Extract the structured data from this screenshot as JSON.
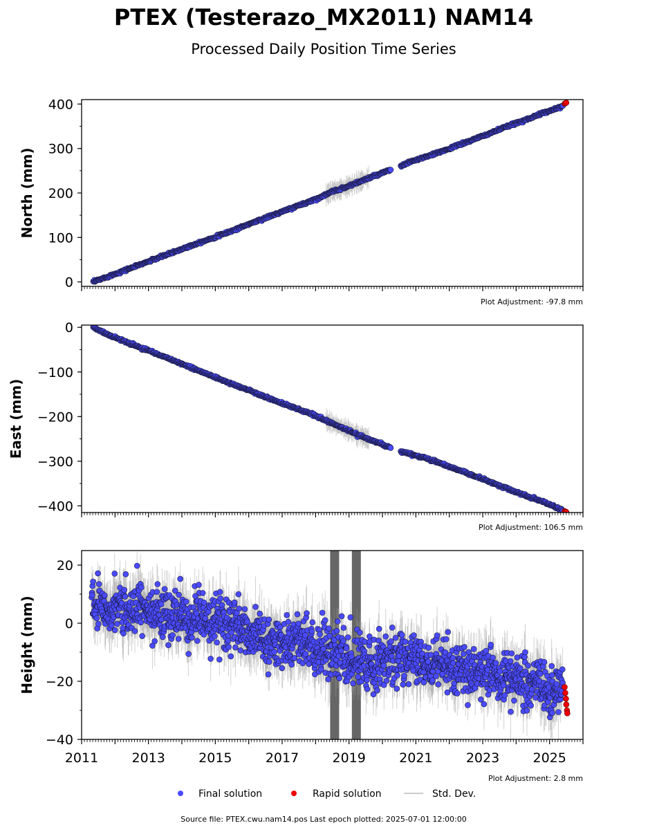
{
  "header": {
    "title": "PTEX (Testerazo_MX2011) NAM14",
    "subtitle": "Processed Daily Position Time Series"
  },
  "legend": {
    "final_label": "Final solution",
    "rapid_label": "Rapid solution",
    "std_label": "Std. Dev."
  },
  "footer": {
    "source": "Source file: PTEX.cwu.nam14.pos  Last epoch plotted: 2025-07-01 12:00:00"
  },
  "colors": {
    "final": "#4a4aff",
    "final_edge": "#1a1a3a",
    "rapid": "#ee0000",
    "std_dev": "#9a9a9a",
    "gap_bars": "#666666"
  },
  "chart_data": [
    {
      "type": "scatter",
      "ylabel": "North (mm)",
      "adjustment": "Plot Adjustment: -97.8 mm",
      "xlim": [
        2011.0,
        2026.0
      ],
      "ylim": [
        -10,
        410
      ],
      "yticks": [
        0,
        100,
        200,
        300,
        400
      ],
      "ytick_labels": [
        "0",
        "100",
        "200",
        "300",
        "400"
      ],
      "show_xtick_labels": false,
      "series": [
        {
          "name": "Final solution",
          "x": [
            2011.35,
            2011.6,
            2012.0,
            2012.5,
            2013.0,
            2013.5,
            2014.0,
            2014.5,
            2015.0,
            2015.5,
            2016.0,
            2016.5,
            2017.0,
            2017.5,
            2018.0,
            2018.5,
            2019.0,
            2019.5,
            2020.0,
            2020.5,
            2020.9,
            2021.5,
            2022.0,
            2022.5,
            2023.0,
            2023.5,
            2024.0,
            2024.5,
            2025.0,
            2025.4
          ],
          "y": [
            0,
            7,
            18,
            32,
            46,
            60,
            74,
            88,
            101,
            115,
            130,
            144,
            158,
            172,
            186,
            203,
            216,
            231,
            245,
            259,
            272,
            286,
            300,
            314,
            328,
            343,
            357,
            371,
            385,
            396
          ]
        },
        {
          "name": "Rapid solution",
          "x": [
            2025.45,
            2025.48,
            2025.5
          ],
          "y": [
            401,
            402,
            403
          ]
        }
      ]
    },
    {
      "type": "scatter",
      "ylabel": "East (mm)",
      "adjustment": "Plot Adjustment: 106.5 mm",
      "xlim": [
        2011.0,
        2026.0
      ],
      "ylim": [
        -415,
        5
      ],
      "yticks": [
        0,
        -100,
        -200,
        -300,
        -400
      ],
      "ytick_labels": [
        "0",
        "−100",
        "−200",
        "−300",
        "−400"
      ],
      "show_xtick_labels": false,
      "series": [
        {
          "name": "Final solution",
          "x": [
            2011.35,
            2011.6,
            2012.0,
            2012.5,
            2013.0,
            2013.5,
            2014.0,
            2014.5,
            2015.0,
            2015.5,
            2016.0,
            2016.5,
            2017.0,
            2017.5,
            2018.0,
            2018.5,
            2019.0,
            2019.5,
            2020.0,
            2020.5,
            2020.9,
            2021.5,
            2022.0,
            2022.5,
            2023.0,
            2023.5,
            2024.0,
            2024.5,
            2025.0,
            2025.4
          ],
          "y": [
            0,
            -10,
            -22,
            -38,
            -52,
            -67,
            -82,
            -97,
            -112,
            -127,
            -141,
            -156,
            -170,
            -184,
            -198,
            -215,
            -232,
            -248,
            -262,
            -277,
            -285,
            -298,
            -312,
            -326,
            -340,
            -355,
            -369,
            -383,
            -397,
            -410
          ]
        },
        {
          "name": "Rapid solution",
          "x": [
            2025.45,
            2025.48,
            2025.5
          ],
          "y": [
            -412,
            -413,
            -414
          ]
        }
      ]
    },
    {
      "type": "scatter",
      "ylabel": "Height (mm)",
      "adjustment": "Plot Adjustment: 2.8 mm",
      "xlim": [
        2011.0,
        2026.0
      ],
      "ylim": [
        -40,
        25
      ],
      "yticks": [
        20,
        0,
        -20,
        -40
      ],
      "ytick_labels": [
        "20",
        "0",
        "−20",
        "−40"
      ],
      "show_xtick_labels": true,
      "xticks": [
        2011,
        2013,
        2015,
        2017,
        2019,
        2021,
        2023,
        2025
      ],
      "xtick_labels": [
        "2011",
        "2013",
        "2015",
        "2017",
        "2019",
        "2021",
        "2023",
        "2025"
      ],
      "series": [
        {
          "name": "Final solution",
          "x": [
            2011.3,
            2011.5,
            2011.8,
            2012.1,
            2012.4,
            2012.7,
            2013.0,
            2013.3,
            2013.6,
            2013.9,
            2014.2,
            2014.5,
            2014.8,
            2015.1,
            2015.4,
            2015.7,
            2016.0,
            2016.3,
            2016.6,
            2016.9,
            2017.2,
            2017.5,
            2017.8,
            2018.1,
            2018.4,
            2018.7,
            2019.0,
            2019.3,
            2019.6,
            2019.9,
            2020.2,
            2020.9,
            2021.2,
            2021.5,
            2021.8,
            2022.1,
            2022.4,
            2022.7,
            2023.0,
            2023.3,
            2023.6,
            2023.9,
            2024.2,
            2024.5,
            2024.8,
            2025.1,
            2025.4
          ],
          "y": [
            6,
            8,
            5,
            7,
            4,
            6,
            3,
            4,
            2,
            3,
            1,
            2,
            0,
            1,
            -2,
            0,
            -4,
            -5,
            -6,
            -7,
            -6,
            -7,
            -8,
            -8,
            -10,
            -11,
            -13,
            -12,
            -14,
            -13,
            -12,
            -13,
            -14,
            -15,
            -14,
            -16,
            -15,
            -17,
            -16,
            -18,
            -19,
            -18,
            -20,
            -21,
            -22,
            -24,
            -23
          ]
        },
        {
          "name": "Rapid solution",
          "x": [
            2025.45,
            2025.47,
            2025.49,
            2025.5,
            2025.52,
            2025.53
          ],
          "y": [
            -22,
            -24,
            -26,
            -28,
            -30,
            -31
          ]
        }
      ]
    }
  ]
}
